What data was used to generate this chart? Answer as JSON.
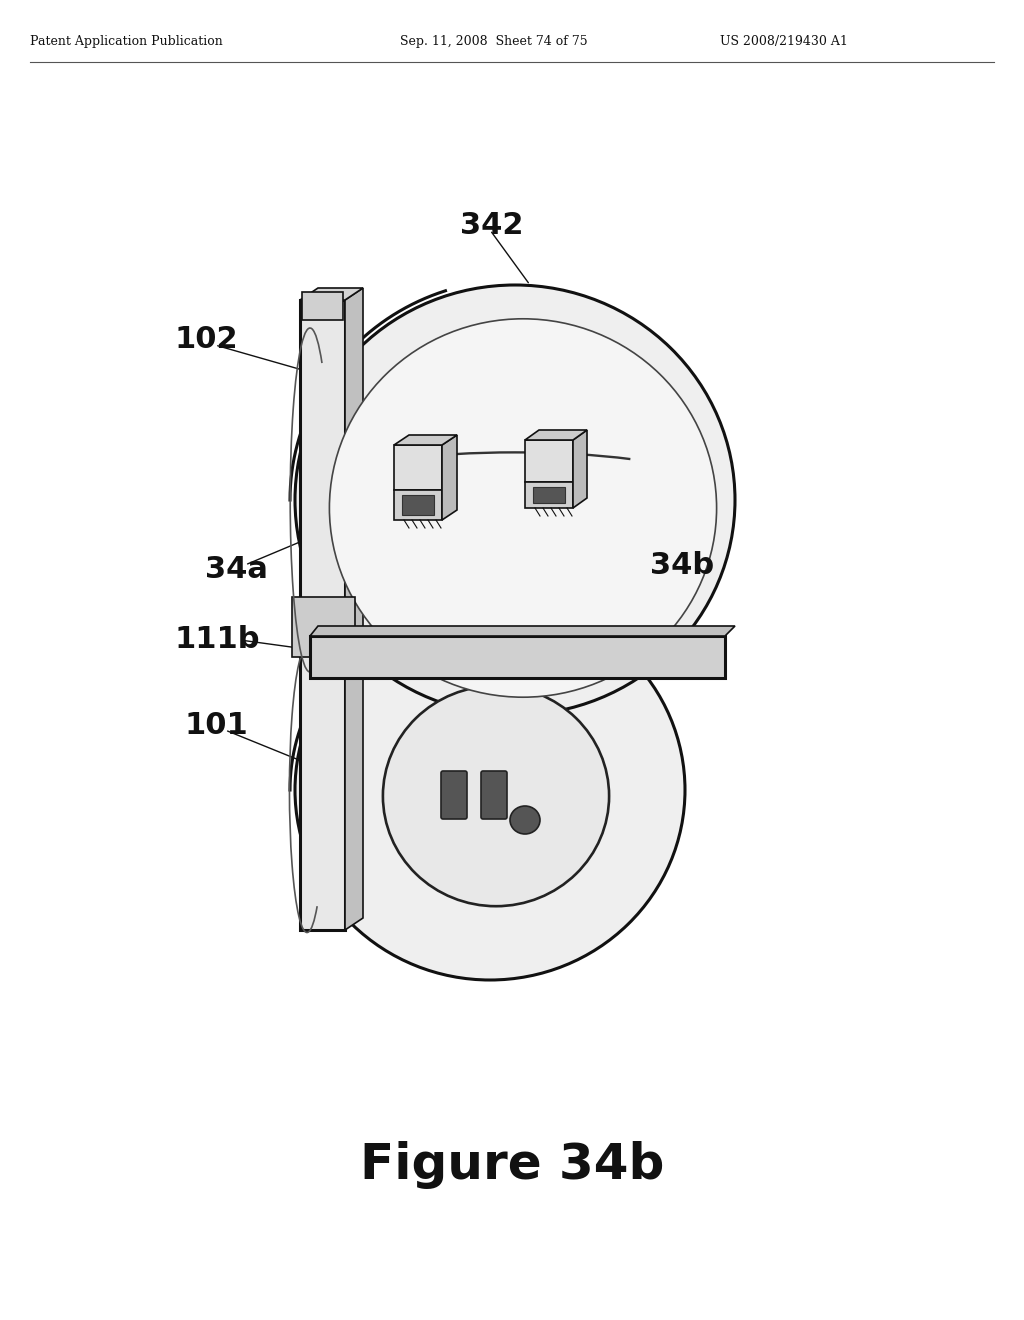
{
  "header_left": "Patent Application Publication",
  "header_mid": "Sep. 11, 2008  Sheet 74 of 75",
  "header_right": "US 2008/219430 A1",
  "figure_caption": "Figure 34b",
  "bg_color": "#ffffff",
  "lc": "#111111",
  "fc_light": "#f0f0f0",
  "fc_mid": "#d8d8d8",
  "fc_dark": "#b8b8b8"
}
